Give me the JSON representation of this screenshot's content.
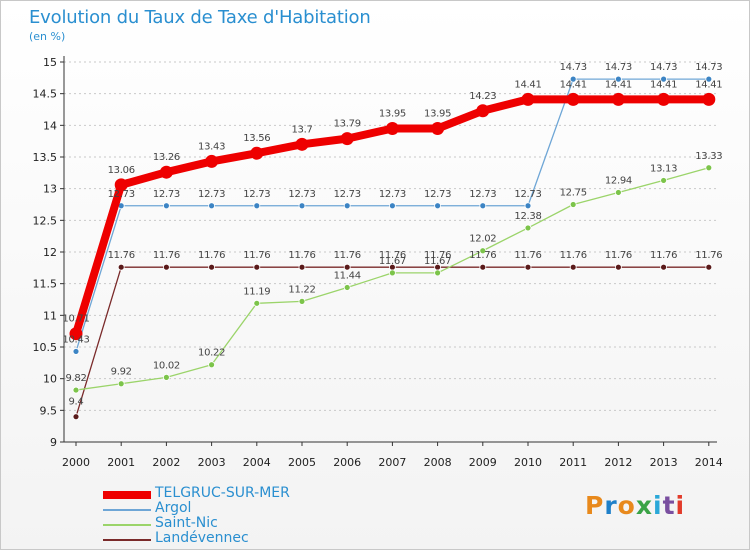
{
  "title": "Evolution du Taux de Taxe d'Habitation",
  "subtitle": "(en %)",
  "logo": {
    "text": "Proxiti",
    "colors": [
      "#e8891c",
      "#1f80c9",
      "#e8891c",
      "#3aa346",
      "#2aa8d8",
      "#7a4fa0",
      "#e23b2a"
    ]
  },
  "chart_data": {
    "type": "line",
    "title": "Evolution du Taux de Taxe d'Habitation",
    "subtitle": "(en %)",
    "xlabel": "",
    "ylabel": "",
    "x": [
      "2000",
      "2001",
      "2002",
      "2003",
      "2004",
      "2005",
      "2006",
      "2007",
      "2008",
      "2009",
      "2010",
      "2011",
      "2012",
      "2013",
      "2014"
    ],
    "ylim": [
      9,
      15
    ],
    "yticks": [
      "9",
      "9.5",
      "10",
      "10.5",
      "11",
      "11.5",
      "12",
      "12.5",
      "13",
      "13.5",
      "14",
      "14.5",
      "15"
    ],
    "grid": "dashed horizontal",
    "legend_position": "bottom-left",
    "series": [
      {
        "name": "TELGRUC-SUR-MER",
        "color": "#ee0000",
        "values": [
          10.71,
          13.06,
          13.26,
          13.43,
          13.56,
          13.7,
          13.79,
          13.95,
          13.95,
          14.23,
          14.41,
          14.41,
          14.41,
          14.41,
          14.41
        ],
        "labels": [
          "10.71",
          "13.06",
          "13.26",
          "13.43",
          "13.56",
          "13.7",
          "13.79",
          "13.95",
          "13.95",
          "14.23",
          "14.41",
          "14.41",
          "14.41",
          "14.41",
          "14.41"
        ]
      },
      {
        "name": "Argol",
        "color": "#6ea6d6",
        "values": [
          10.43,
          12.73,
          12.73,
          12.73,
          12.73,
          12.73,
          12.73,
          12.73,
          12.73,
          12.73,
          12.73,
          14.73,
          14.73,
          14.73,
          14.73
        ],
        "labels": [
          "10.43",
          "12.73",
          "12.73",
          "12.73",
          "12.73",
          "12.73",
          "12.73",
          "12.73",
          "12.73",
          "12.73",
          "12.73",
          "14.73",
          "14.73",
          "14.73",
          "14.73"
        ]
      },
      {
        "name": "Saint-Nic",
        "color": "#9bd46a",
        "values": [
          9.82,
          9.92,
          10.02,
          10.22,
          11.19,
          11.22,
          11.44,
          11.67,
          11.67,
          12.02,
          12.38,
          12.75,
          12.94,
          13.13,
          13.33
        ],
        "labels": [
          "9.82",
          "9.92",
          "10.02",
          "10.22",
          "11.19",
          "11.22",
          "11.44",
          "11.67",
          "11.67",
          "12.02",
          "12.38",
          "12.75",
          "12.94",
          "13.13",
          "13.33"
        ]
      },
      {
        "name": "Landévennec",
        "color": "#7a2a2a",
        "values": [
          9.4,
          11.76,
          11.76,
          11.76,
          11.76,
          11.76,
          11.76,
          11.76,
          11.76,
          11.76,
          11.76,
          11.76,
          11.76,
          11.76,
          11.76
        ],
        "labels": [
          "9.4",
          "11.76",
          "11.76",
          "11.76",
          "11.76",
          "11.76",
          "11.76",
          "11.76",
          "11.76",
          "11.76",
          "11.76",
          "11.76",
          "11.76",
          "11.76",
          "11.76"
        ]
      }
    ]
  }
}
